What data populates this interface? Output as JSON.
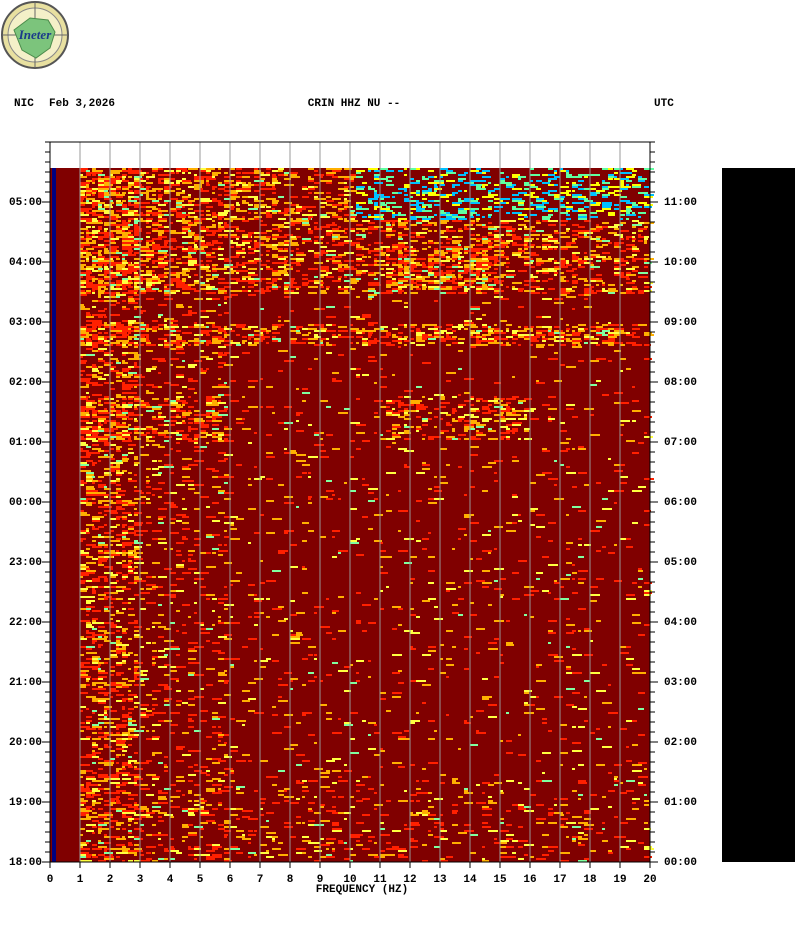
{
  "logo": {
    "text": "Ineter"
  },
  "header": {
    "network": "NIC",
    "date": "Feb 3,2026",
    "channel": "CRIN HHZ NU --",
    "timezone": "UTC"
  },
  "chart_data": {
    "type": "spectrogram",
    "x_label": "FREQUENCY (HZ)",
    "xlim": [
      0,
      20
    ],
    "xticks": [
      0,
      1,
      2,
      3,
      4,
      5,
      6,
      7,
      8,
      9,
      10,
      11,
      12,
      13,
      14,
      15,
      16,
      17,
      18,
      19,
      20
    ],
    "grid": true,
    "yticks": [
      "18:00",
      "19:00",
      "20:00",
      "21:00",
      "22:00",
      "23:00",
      "00:00",
      "01:00",
      "02:00",
      "03:00",
      "04:00",
      "05:00"
    ],
    "y2ticks": [
      "00:00",
      "01:00",
      "02:00",
      "03:00",
      "04:00",
      "05:00",
      "06:00",
      "07:00",
      "08:00",
      "09:00",
      "10:00",
      "11:00"
    ]
  }
}
